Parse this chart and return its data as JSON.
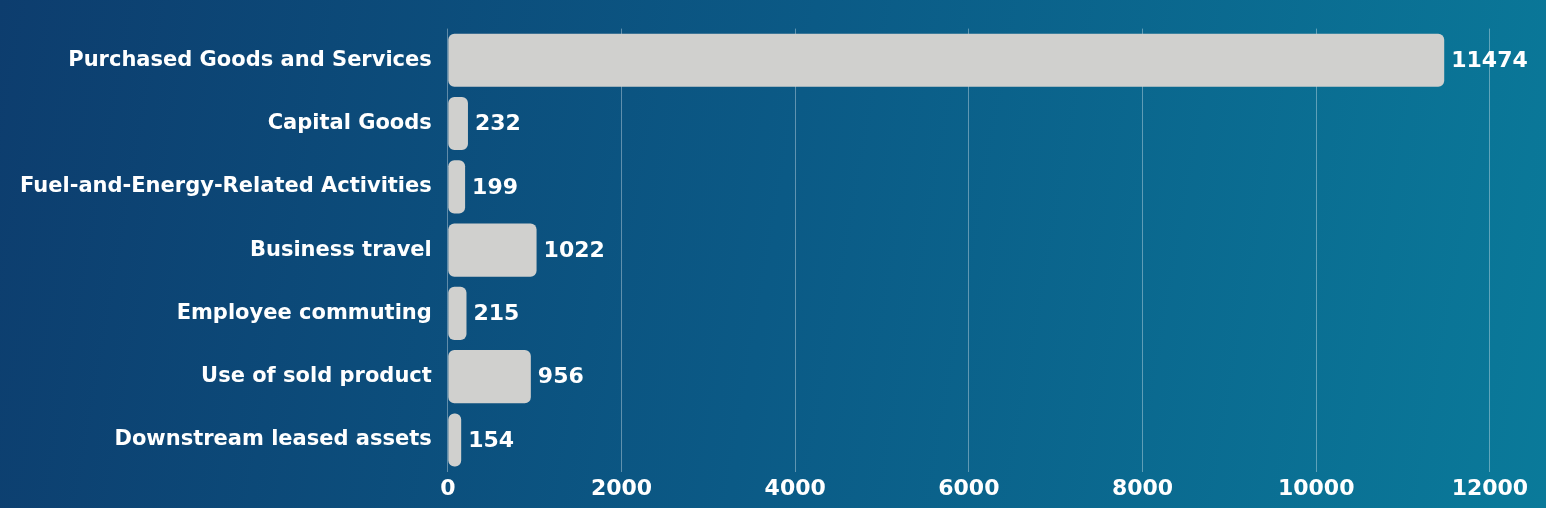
{
  "chart_data": {
    "type": "bar",
    "orientation": "horizontal",
    "categories": [
      "Purchased Goods and Services",
      "Capital Goods",
      "Fuel-and-Energy-Related Activities",
      "Business travel",
      "Employee commuting",
      "Use of sold product",
      "Downstream leased assets"
    ],
    "values": [
      11474,
      232,
      199,
      1022,
      215,
      956,
      154
    ],
    "color": "#d0d0ce",
    "xlim": [
      0,
      12600
    ],
    "xticks": [
      0,
      2000,
      4000,
      6000,
      8000,
      10000,
      12000
    ],
    "grid": "x",
    "data_labels": true,
    "legend": false
  }
}
